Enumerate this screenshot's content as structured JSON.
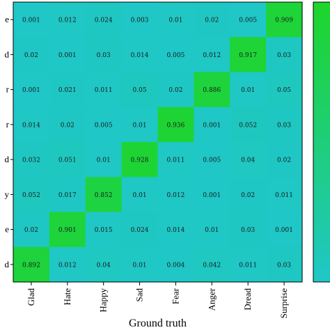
{
  "chart_data": {
    "type": "heatmap",
    "xlabel": "Ground truth",
    "x_categories": [
      "Glad",
      "Hate",
      "Happy",
      "Sad",
      "Fear",
      "Anger",
      "Dread",
      "Surprise"
    ],
    "y_tick_fragments": [
      "e",
      "d",
      "r",
      "r",
      "d",
      "y",
      "e",
      "d"
    ],
    "values": [
      [
        "0.001",
        "0.012",
        "0.024",
        "0.003",
        "0.01",
        "0.02",
        "0.005",
        "0.909"
      ],
      [
        "0.02",
        "0.001",
        "0.03",
        "0.014",
        "0.005",
        "0.012",
        "0.917",
        "0.03"
      ],
      [
        "0.001",
        "0.021",
        "0.011",
        "0.05",
        "0.02",
        "0.886",
        "0.01",
        "0.05"
      ],
      [
        "0.014",
        "0.02",
        "0.005",
        "0.01",
        "0.936",
        "0.001",
        "0.052",
        "0.03"
      ],
      [
        "0.032",
        "0.051",
        "0.01",
        "0.928",
        "0.011",
        "0.005",
        "0.04",
        "0.02"
      ],
      [
        "0.052",
        "0.017",
        "0.852",
        "0.01",
        "0.012",
        "0.001",
        "0.02",
        "0.011"
      ],
      [
        "0.02",
        "0.901",
        "0.015",
        "0.024",
        "0.014",
        "0.01",
        "0.03",
        "0.001"
      ],
      [
        "0.892",
        "0.012",
        "0.04",
        "0.01",
        "0.004",
        "0.042",
        "0.011",
        "0.03"
      ]
    ],
    "colormap": {
      "low": "#1fc7c7",
      "high": "#1ed52a"
    },
    "colorbar_placement": "right"
  }
}
